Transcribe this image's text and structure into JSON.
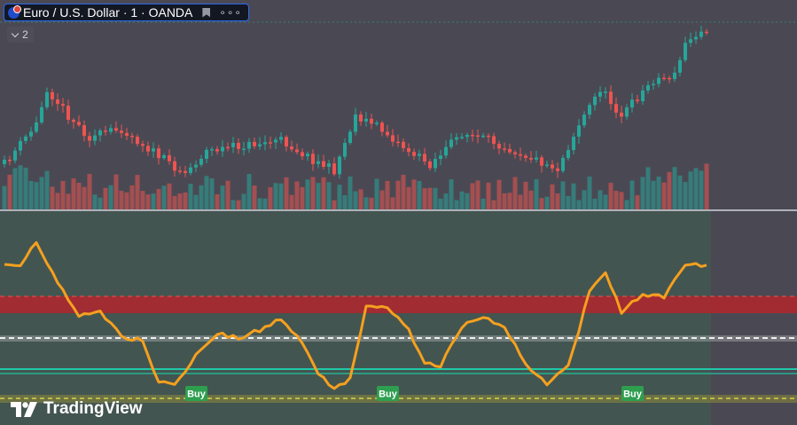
{
  "symbol": {
    "title": "Euro / U.S. Dollar · 1 · OANDA",
    "more": "∘∘∘"
  },
  "collapse": {
    "count": "2"
  },
  "brand": {
    "name": "TradingView"
  },
  "signals": [
    {
      "label": "Buy",
      "index": 36
    },
    {
      "label": "Buy",
      "index": 72
    },
    {
      "label": "Buy",
      "index": 118
    }
  ],
  "colors": {
    "background": "#4a4953",
    "oscillator_panel": "#435550",
    "bull": "#26a69a",
    "bear": "#ef5350",
    "oscillator_line": "#f5a01f",
    "overbought_band": "#b2262c",
    "midline": "#e0e0e0",
    "oversold_line": "#1fc8a8",
    "floor_line": "#c8c23c",
    "buy_label": "#2e9e4f",
    "divider": "#d1d4dc"
  },
  "icons": [
    "eur-usd-flag-icon",
    "bookmark-icon",
    "more-icon",
    "chevron-down-icon",
    "tradingview-logo-icon"
  ]
}
